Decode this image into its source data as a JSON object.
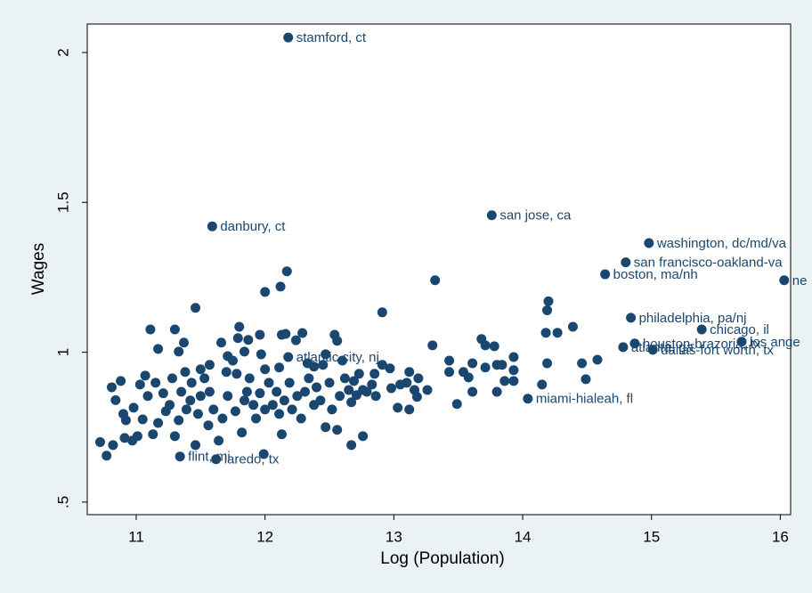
{
  "chart_data": {
    "type": "scatter",
    "xlabel": "Log (Population)",
    "ylabel": "Wages",
    "xlim": [
      10.62,
      16.08
    ],
    "ylim": [
      0.458,
      2.095
    ],
    "xticks": [
      11,
      12,
      13,
      14,
      15,
      16
    ],
    "yticks": [
      {
        "value": 0.5,
        "label": ".5"
      },
      1,
      1.5,
      2
    ],
    "grid": false,
    "series": [
      {
        "color": "#1a476f",
        "x": [
          12.18,
          13.76,
          11.59,
          14.98,
          14.8,
          14.64,
          16.03,
          14.84,
          15.39,
          14.87,
          15.7,
          14.78,
          15.01,
          12.18,
          14.04,
          11.34,
          11.62
        ],
        "values": [
          2.05,
          1.457,
          1.42,
          1.364,
          1.3,
          1.26,
          1.24,
          1.115,
          1.076,
          1.029,
          1.035,
          1.017,
          1.008,
          0.984,
          0.845,
          0.652,
          0.643
        ],
        "point_labels": [
          "stamford, ct",
          "san jose, ca",
          "danbury, ct",
          "washington, dc/md/va",
          "san francisco-oakland-va",
          "boston, ma/nh",
          "ne",
          "philadelphia, pa/nj",
          "chicago, il",
          "houston-brazoria, tx",
          "los ange",
          "atlanta, ga",
          "dallas-fort worth, tx",
          "atlantic city, nj",
          "miami-hialeah, fl",
          "flint, mi",
          "laredo, tx"
        ]
      },
      {
        "color": "#1a476f",
        "x": [
          14.2,
          14.19,
          14.27,
          14.18,
          14.39,
          14.19,
          14.15,
          14.46,
          14.58,
          14.49,
          13.93,
          13.93,
          13.93,
          13.84,
          13.8,
          13.78,
          13.71,
          13.68,
          13.71,
          13.61,
          13.58,
          13.61,
          13.54,
          13.49,
          13.8,
          13.86,
          13.32,
          13.3,
          13.43,
          13.43,
          13.26,
          13.19,
          13.12,
          13.1,
          13.18,
          13.12,
          13.03,
          13.05,
          13.16,
          12.97,
          12.98,
          12.91,
          12.91,
          12.85,
          12.83,
          12.76,
          12.71,
          12.67,
          12.76,
          12.67,
          12.69,
          12.17,
          12.12,
          12.0,
          12.16,
          12.29,
          12.24,
          12.54,
          12.56,
          12.47,
          12.6,
          12.45,
          12.38,
          12.33,
          12.11,
          12.0,
          11.97,
          11.79,
          11.87,
          11.96,
          12.13,
          11.8,
          11.46,
          11.3,
          11.11,
          11.17,
          10.72,
          10.77,
          10.82,
          10.81,
          10.84,
          10.88,
          10.9,
          10.92,
          10.91,
          10.97,
          10.98,
          11.01,
          11.03,
          11.05,
          11.07,
          11.09,
          11.13,
          11.15,
          11.17,
          11.21,
          11.23,
          11.26,
          11.28,
          11.3,
          11.33,
          11.35,
          11.38,
          11.39,
          11.42,
          11.43,
          11.46,
          11.48,
          11.5,
          11.53,
          11.56,
          11.57,
          11.6,
          11.64,
          11.67,
          11.7,
          11.71,
          11.75,
          11.77,
          11.78,
          11.82,
          11.84,
          11.86,
          11.88,
          11.91,
          11.93,
          11.96,
          11.99,
          12.0,
          12.03,
          12.06,
          12.09,
          12.11,
          12.13,
          12.15,
          12.19,
          12.21,
          12.25,
          12.28,
          12.31,
          12.34,
          12.38,
          12.4,
          12.43,
          12.47,
          12.5,
          12.52,
          12.56,
          12.58,
          12.62,
          12.65,
          12.73,
          12.79,
          12.86,
          11.66,
          11.84,
          11.71,
          11.37,
          11.33,
          11.57,
          11.5
        ],
        "values": [
          1.17,
          1.14,
          1.065,
          1.065,
          1.085,
          0.963,
          0.892,
          0.963,
          0.975,
          0.91,
          0.984,
          0.94,
          0.904,
          0.958,
          0.958,
          1.02,
          1.023,
          1.044,
          0.949,
          0.963,
          0.916,
          0.868,
          0.934,
          0.827,
          0.868,
          0.904,
          1.24,
          1.023,
          0.972,
          0.934,
          0.874,
          0.913,
          0.934,
          0.898,
          0.851,
          0.809,
          0.815,
          0.892,
          0.874,
          0.946,
          0.88,
          0.958,
          1.133,
          0.928,
          0.892,
          0.874,
          0.857,
          0.833,
          0.72,
          0.69,
          0.904,
          1.27,
          1.219,
          1.201,
          1.061,
          1.064,
          1.04,
          1.058,
          1.038,
          0.993,
          0.972,
          0.958,
          0.952,
          0.963,
          0.949,
          0.943,
          0.993,
          1.047,
          1.041,
          1.058,
          1.058,
          1.085,
          1.148,
          1.076,
          1.076,
          1.011,
          0.7,
          0.655,
          0.69,
          0.883,
          0.84,
          0.904,
          0.794,
          0.773,
          0.714,
          0.705,
          0.815,
          0.72,
          0.892,
          0.776,
          0.922,
          0.854,
          0.726,
          0.898,
          0.764,
          0.863,
          0.803,
          0.824,
          0.913,
          0.72,
          0.773,
          0.868,
          0.934,
          0.809,
          0.839,
          0.898,
          0.69,
          0.794,
          0.854,
          0.913,
          0.756,
          0.868,
          0.809,
          0.705,
          0.779,
          0.934,
          0.854,
          0.972,
          0.803,
          0.928,
          0.732,
          0.839,
          0.868,
          0.913,
          0.824,
          0.779,
          0.863,
          0.66,
          0.809,
          0.898,
          0.824,
          0.868,
          0.794,
          0.726,
          0.839,
          0.898,
          0.809,
          0.854,
          0.779,
          0.868,
          0.913,
          0.824,
          0.883,
          0.839,
          0.75,
          0.898,
          0.809,
          0.741,
          0.854,
          0.913,
          0.874,
          0.928,
          0.868,
          0.854,
          1.032,
          1.002,
          0.987,
          1.032,
          1.002,
          0.958,
          0.943
        ]
      }
    ]
  }
}
